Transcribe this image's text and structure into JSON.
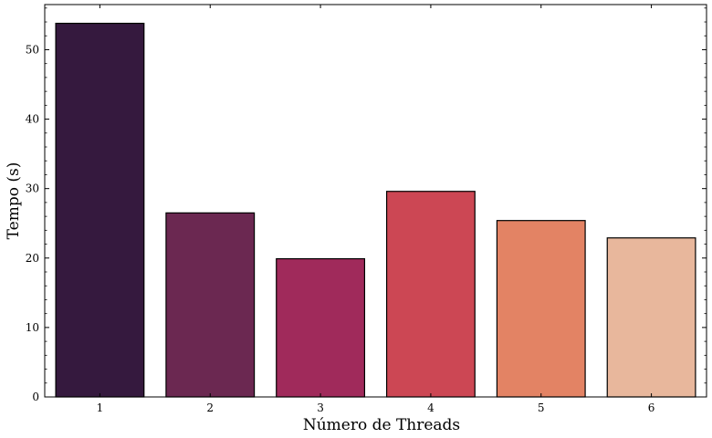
{
  "chart_data": {
    "type": "bar",
    "title": "",
    "xlabel": "Número de Threads",
    "ylabel": "Tempo (s)",
    "categories": [
      "1",
      "2",
      "3",
      "4",
      "5",
      "6"
    ],
    "values": [
      53.8,
      26.5,
      19.9,
      29.6,
      25.4,
      22.9
    ],
    "colors": [
      "#35193e",
      "#6b2851",
      "#a02a5b",
      "#cc4754",
      "#e38364",
      "#e8b79c"
    ],
    "edge_color": "#000000",
    "ylim": [
      0,
      56.5
    ],
    "yticks": [
      0,
      10,
      20,
      30,
      40,
      50
    ],
    "yticks_labels": [
      "0",
      "10",
      "20",
      "30",
      "40",
      "50"
    ],
    "grid": false,
    "legend": "none"
  }
}
